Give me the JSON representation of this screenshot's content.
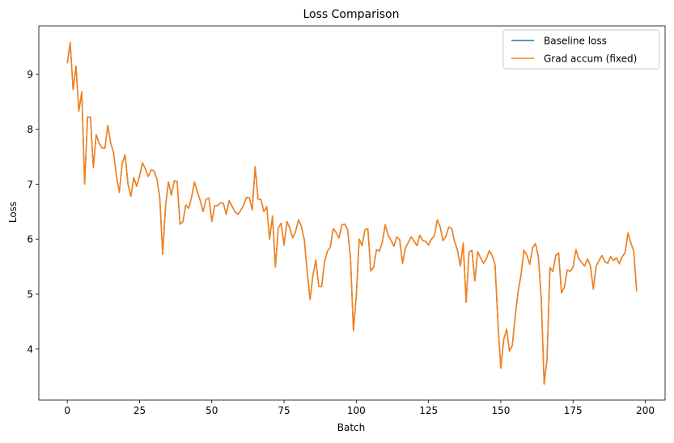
{
  "chart_data": {
    "type": "line",
    "title": "Loss Comparison",
    "xlabel": "Batch",
    "ylabel": "Loss",
    "xlim": [
      -9.85,
      206.85
    ],
    "ylim": [
      3.07,
      9.88
    ],
    "xticks": [
      0,
      25,
      50,
      75,
      100,
      125,
      150,
      175,
      200
    ],
    "yticks": [
      4,
      5,
      6,
      7,
      8,
      9
    ],
    "legend_position": "top-right",
    "series": [
      {
        "name": "Baseline loss",
        "color": "#1f77b4",
        "x": [
          0,
          1,
          2,
          3,
          4,
          5,
          6,
          7,
          8,
          9,
          10,
          11,
          12,
          13,
          14,
          15,
          16,
          17,
          18,
          19,
          20,
          21,
          22,
          23,
          24,
          25,
          26,
          27,
          28,
          29,
          30,
          31,
          32,
          33,
          34,
          35,
          36,
          37,
          38,
          39,
          40,
          41,
          42,
          43,
          44,
          45,
          46,
          47,
          48,
          49,
          50,
          51,
          52,
          53,
          54,
          55,
          56,
          57,
          58,
          59,
          60,
          61,
          62,
          63,
          64,
          65,
          66,
          67,
          68,
          69,
          70,
          71,
          72,
          73,
          74,
          75,
          76,
          77,
          78,
          79,
          80,
          81,
          82,
          83,
          84,
          85,
          86,
          87,
          88,
          89,
          90,
          91,
          92,
          93,
          94,
          95,
          96,
          97,
          98,
          99,
          100,
          101,
          102,
          103,
          104,
          105,
          106,
          107,
          108,
          109,
          110,
          111,
          112,
          113,
          114,
          115,
          116,
          117,
          118,
          119,
          120,
          121,
          122,
          123,
          124,
          125,
          126,
          127,
          128,
          129,
          130,
          131,
          132,
          133,
          134,
          135,
          136,
          137,
          138,
          139,
          140,
          141,
          142,
          143,
          144,
          145,
          146,
          147,
          148,
          149,
          150,
          151,
          152,
          153,
          154,
          155,
          156,
          157,
          158,
          159,
          160,
          161,
          162,
          163,
          164,
          165,
          166,
          167,
          168,
          169,
          170,
          171,
          172,
          173,
          174,
          175,
          176,
          177,
          178,
          179,
          180,
          181,
          182,
          183,
          184,
          185,
          186,
          187,
          188,
          189,
          190,
          191,
          192,
          193,
          194,
          195,
          196,
          197
        ],
        "values": [
          9.2,
          9.58,
          8.72,
          9.15,
          8.33,
          8.68,
          7.0,
          8.22,
          8.22,
          7.3,
          7.9,
          7.75,
          7.66,
          7.65,
          8.07,
          7.75,
          7.58,
          7.15,
          6.85,
          7.38,
          7.53,
          7.0,
          6.78,
          7.12,
          6.96,
          7.15,
          7.39,
          7.28,
          7.14,
          7.26,
          7.24,
          7.1,
          6.75,
          5.72,
          6.6,
          7.04,
          6.8,
          7.06,
          7.05,
          6.27,
          6.32,
          6.62,
          6.56,
          6.76,
          7.04,
          6.86,
          6.7,
          6.5,
          6.72,
          6.75,
          6.32,
          6.61,
          6.61,
          6.66,
          6.65,
          6.45,
          6.7,
          6.6,
          6.5,
          6.45,
          6.52,
          6.62,
          6.76,
          6.75,
          6.53,
          7.32,
          6.73,
          6.72,
          6.5,
          6.59,
          6.0,
          6.42,
          5.49,
          6.2,
          6.29,
          5.89,
          6.32,
          6.2,
          6.02,
          6.14,
          6.35,
          6.23,
          5.99,
          5.4,
          4.9,
          5.34,
          5.62,
          5.14,
          5.14,
          5.58,
          5.78,
          5.85,
          6.19,
          6.12,
          6.02,
          6.26,
          6.27,
          6.17,
          5.65,
          4.33,
          4.97,
          6.0,
          5.88,
          6.17,
          6.19,
          5.42,
          5.49,
          5.81,
          5.78,
          5.94,
          6.26,
          6.07,
          5.98,
          5.87,
          6.04,
          5.99,
          5.56,
          5.84,
          5.94,
          6.04,
          5.96,
          5.88,
          6.07,
          5.97,
          5.96,
          5.89,
          6.0,
          6.06,
          6.35,
          6.23,
          5.97,
          6.05,
          6.22,
          6.19,
          5.96,
          5.8,
          5.51,
          5.93,
          4.85,
          5.76,
          5.8,
          5.24,
          5.77,
          5.66,
          5.56,
          5.64,
          5.79,
          5.7,
          5.54,
          4.5,
          3.65,
          4.17,
          4.36,
          3.96,
          4.07,
          4.6,
          5.05,
          5.35,
          5.8,
          5.71,
          5.54,
          5.84,
          5.92,
          5.68,
          4.92,
          3.36,
          3.81,
          5.48,
          5.41,
          5.7,
          5.75,
          5.02,
          5.12,
          5.44,
          5.41,
          5.49,
          5.81,
          5.64,
          5.57,
          5.51,
          5.64,
          5.52,
          5.09,
          5.51,
          5.61,
          5.7,
          5.59,
          5.56,
          5.68,
          5.61,
          5.66,
          5.55,
          5.68,
          5.75,
          6.11,
          5.93,
          5.78,
          5.05
        ]
      },
      {
        "name": "Grad accum (fixed)",
        "color": "#ff7f0e",
        "x": [
          0,
          1,
          2,
          3,
          4,
          5,
          6,
          7,
          8,
          9,
          10,
          11,
          12,
          13,
          14,
          15,
          16,
          17,
          18,
          19,
          20,
          21,
          22,
          23,
          24,
          25,
          26,
          27,
          28,
          29,
          30,
          31,
          32,
          33,
          34,
          35,
          36,
          37,
          38,
          39,
          40,
          41,
          42,
          43,
          44,
          45,
          46,
          47,
          48,
          49,
          50,
          51,
          52,
          53,
          54,
          55,
          56,
          57,
          58,
          59,
          60,
          61,
          62,
          63,
          64,
          65,
          66,
          67,
          68,
          69,
          70,
          71,
          72,
          73,
          74,
          75,
          76,
          77,
          78,
          79,
          80,
          81,
          82,
          83,
          84,
          85,
          86,
          87,
          88,
          89,
          90,
          91,
          92,
          93,
          94,
          95,
          96,
          97,
          98,
          99,
          100,
          101,
          102,
          103,
          104,
          105,
          106,
          107,
          108,
          109,
          110,
          111,
          112,
          113,
          114,
          115,
          116,
          117,
          118,
          119,
          120,
          121,
          122,
          123,
          124,
          125,
          126,
          127,
          128,
          129,
          130,
          131,
          132,
          133,
          134,
          135,
          136,
          137,
          138,
          139,
          140,
          141,
          142,
          143,
          144,
          145,
          146,
          147,
          148,
          149,
          150,
          151,
          152,
          153,
          154,
          155,
          156,
          157,
          158,
          159,
          160,
          161,
          162,
          163,
          164,
          165,
          166,
          167,
          168,
          169,
          170,
          171,
          172,
          173,
          174,
          175,
          176,
          177,
          178,
          179,
          180,
          181,
          182,
          183,
          184,
          185,
          186,
          187,
          188,
          189,
          190,
          191,
          192,
          193,
          194,
          195,
          196,
          197
        ],
        "values": [
          9.2,
          9.58,
          8.72,
          9.15,
          8.33,
          8.68,
          7.0,
          8.22,
          8.22,
          7.3,
          7.9,
          7.75,
          7.66,
          7.65,
          8.07,
          7.75,
          7.58,
          7.15,
          6.85,
          7.38,
          7.53,
          7.0,
          6.78,
          7.12,
          6.96,
          7.15,
          7.39,
          7.28,
          7.14,
          7.26,
          7.24,
          7.1,
          6.75,
          5.72,
          6.6,
          7.04,
          6.8,
          7.06,
          7.05,
          6.27,
          6.32,
          6.62,
          6.56,
          6.76,
          7.04,
          6.86,
          6.7,
          6.5,
          6.72,
          6.75,
          6.32,
          6.61,
          6.61,
          6.66,
          6.65,
          6.45,
          6.7,
          6.6,
          6.5,
          6.45,
          6.52,
          6.62,
          6.76,
          6.75,
          6.53,
          7.32,
          6.73,
          6.72,
          6.5,
          6.59,
          6.0,
          6.42,
          5.49,
          6.2,
          6.29,
          5.89,
          6.32,
          6.2,
          6.02,
          6.14,
          6.35,
          6.23,
          5.99,
          5.4,
          4.9,
          5.34,
          5.62,
          5.14,
          5.14,
          5.58,
          5.78,
          5.85,
          6.19,
          6.12,
          6.02,
          6.26,
          6.27,
          6.17,
          5.65,
          4.33,
          4.97,
          6.0,
          5.88,
          6.17,
          6.19,
          5.42,
          5.49,
          5.81,
          5.78,
          5.94,
          6.26,
          6.07,
          5.98,
          5.87,
          6.04,
          5.99,
          5.56,
          5.84,
          5.94,
          6.04,
          5.96,
          5.88,
          6.07,
          5.97,
          5.96,
          5.89,
          6.0,
          6.06,
          6.35,
          6.23,
          5.97,
          6.05,
          6.22,
          6.19,
          5.96,
          5.8,
          5.51,
          5.93,
          4.85,
          5.76,
          5.8,
          5.24,
          5.77,
          5.66,
          5.56,
          5.64,
          5.79,
          5.7,
          5.54,
          4.5,
          3.65,
          4.17,
          4.36,
          3.96,
          4.07,
          4.6,
          5.05,
          5.35,
          5.8,
          5.71,
          5.54,
          5.84,
          5.92,
          5.68,
          4.92,
          3.36,
          3.81,
          5.48,
          5.41,
          5.7,
          5.75,
          5.02,
          5.12,
          5.44,
          5.41,
          5.49,
          5.81,
          5.64,
          5.57,
          5.51,
          5.64,
          5.52,
          5.09,
          5.51,
          5.61,
          5.7,
          5.59,
          5.56,
          5.68,
          5.61,
          5.66,
          5.55,
          5.68,
          5.75,
          6.11,
          5.93,
          5.78,
          5.05
        ]
      }
    ]
  }
}
